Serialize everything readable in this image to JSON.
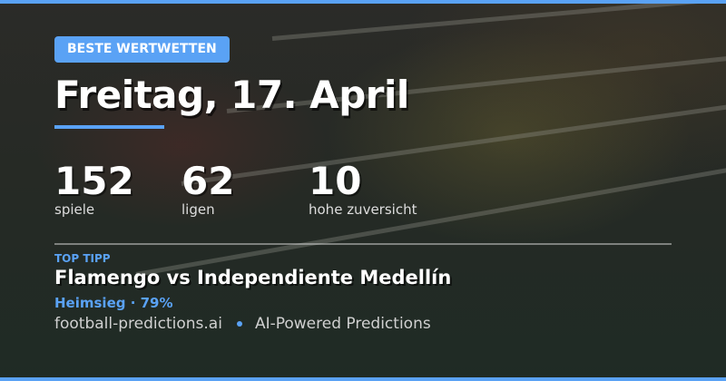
{
  "badge": "BESTE WERTWETTEN",
  "title": "Freitag, 17. April",
  "stats": [
    {
      "value": "152",
      "label": "spiele"
    },
    {
      "value": "62",
      "label": "ligen"
    },
    {
      "value": "10",
      "label": "hohe zuversicht"
    }
  ],
  "top_tip": {
    "label": "TOP TIPP",
    "match": "Flamengo vs Independiente Medellín",
    "pick": "Heimsieg · 79%"
  },
  "footer": {
    "site": "football-predictions.ai",
    "tagline": "AI-Powered Predictions"
  },
  "colors": {
    "accent": "#5aa2f5",
    "background": "#262a25"
  }
}
